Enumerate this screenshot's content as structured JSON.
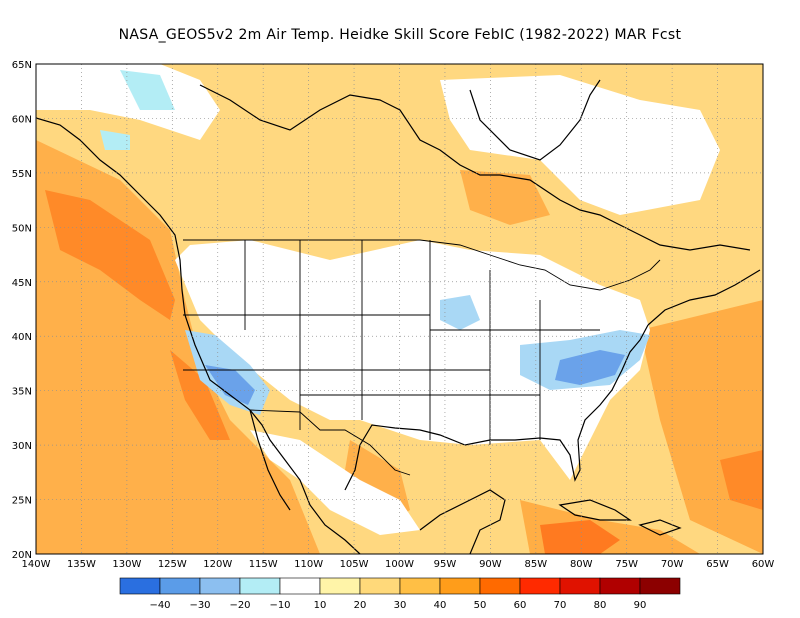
{
  "title": "NASA_GEOS5v2  2m Air Temp. Heidke Skill Score FebIC (1982-2022) MAR Fcst",
  "lat_labels": [
    "65N",
    "60N",
    "55N",
    "50N",
    "45N",
    "40N",
    "35N",
    "30N",
    "25N",
    "20N"
  ],
  "lon_labels": [
    "140W",
    "135W",
    "130W",
    "125W",
    "120W",
    "115W",
    "110W",
    "105W",
    "100W",
    "95W",
    "90W",
    "85W",
    "80W",
    "75W",
    "70W",
    "65W",
    "60W"
  ],
  "colorbar": {
    "colors": [
      "#2a6fe0",
      "#5b9ce8",
      "#8cbff0",
      "#b3edf5",
      "#ffffff",
      "#fff4a8",
      "#ffd97a",
      "#ffbf45",
      "#ff9d1a",
      "#ff6a00",
      "#ff2a00",
      "#e01200",
      "#b00000",
      "#8c0000"
    ],
    "tick_labels": [
      "−40",
      "−30",
      "−20",
      "−10",
      "10",
      "20",
      "30",
      "40",
      "50",
      "60",
      "70",
      "80",
      "90"
    ]
  },
  "colors": {
    "ocean_base": "#ffd880",
    "land_base": "#ffffff",
    "skill_negative": "#a9d8f5",
    "skill_strong_negative": "#6aa2ea",
    "skill_high": "#ff9a35",
    "skill_very_high": "#ff6a1a",
    "outline": "#000000"
  }
}
